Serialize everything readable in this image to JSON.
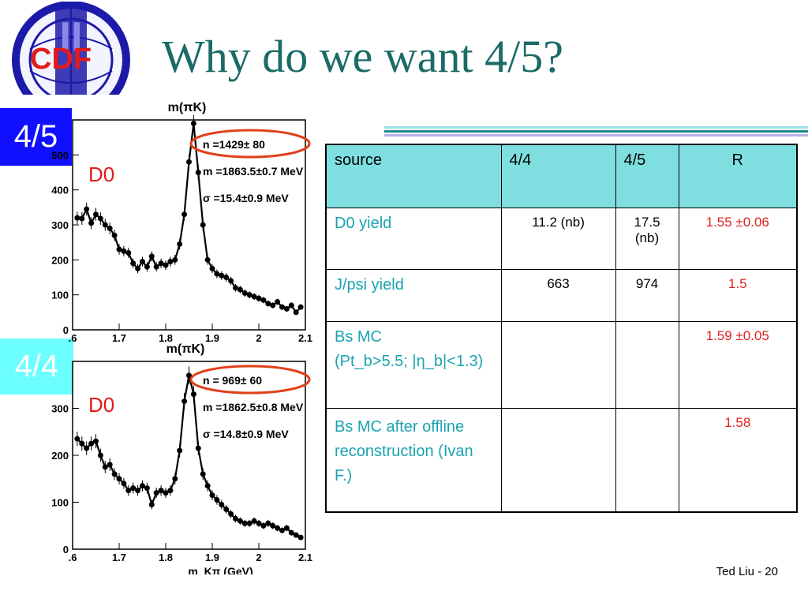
{
  "title": "Why do we want 4/5?",
  "logo": {
    "roman": "II",
    "text": "CDF"
  },
  "badges": {
    "top": "4/5",
    "bottom": "4/4"
  },
  "footer": "Ted Liu - 20",
  "colors": {
    "title": "#1b6b66",
    "badge_top": "#1010ff",
    "badge_bottom": "#6bffff",
    "table_header": "#7fdfe0",
    "source_text": "#1aa3b0",
    "ratio_text": "#e02020",
    "ellipse": "#e0401a"
  },
  "table": {
    "headers": {
      "source": "source",
      "c44": "4/4",
      "c45": "4/5",
      "r": "R"
    },
    "rows": [
      {
        "source": [
          "D0 yield"
        ],
        "c44": "11.2  (nb)",
        "c45": "17.5 (nb)",
        "r": "1.55 ±0.06"
      },
      {
        "source": [
          "J/psi yield"
        ],
        "c44": "663",
        "c45": "974",
        "r": "1.5"
      },
      {
        "source": [
          "Bs MC",
          "(Pt_b>5.5; |η_b|<1.3)"
        ],
        "c44": "",
        "c45": "",
        "r": "1.59 ±0.05"
      },
      {
        "source": [
          "Bs  MC after offline reconstruction (Ivan F.)"
        ],
        "c44": "",
        "c45": "",
        "r": "1.58"
      }
    ]
  },
  "chart_data": [
    {
      "type": "scatter",
      "title": "m(πK)",
      "xlabel": "",
      "ylabel": "",
      "label": "D0",
      "xlim": [
        1.6,
        2.1
      ],
      "ylim": [
        0,
        600
      ],
      "xticks": [
        ".6",
        "1.7",
        "1.8",
        "1.9",
        "2",
        "2.1"
      ],
      "yticks": [
        "0",
        "100",
        "200",
        "300",
        "400",
        "500"
      ],
      "annotations": [
        "n =1429± 80",
        "m =1863.5±0.7 MeV",
        "σ =15.4±0.9 MeV"
      ],
      "series": [
        {
          "x": [
            1.61,
            1.62,
            1.63,
            1.64,
            1.65,
            1.66,
            1.67,
            1.68,
            1.69,
            1.7,
            1.71,
            1.72,
            1.73,
            1.74,
            1.75,
            1.76,
            1.77,
            1.78,
            1.79,
            1.8,
            1.81,
            1.82,
            1.83,
            1.84,
            1.85,
            1.86,
            1.87,
            1.88,
            1.89,
            1.9,
            1.91,
            1.92,
            1.93,
            1.94,
            1.95,
            1.96,
            1.97,
            1.98,
            1.99,
            2.0,
            2.01,
            2.02,
            2.03,
            2.04,
            2.05,
            2.06,
            2.07,
            2.08,
            2.09
          ],
          "y": [
            320,
            318,
            345,
            305,
            330,
            318,
            300,
            290,
            270,
            230,
            225,
            220,
            190,
            175,
            195,
            180,
            210,
            180,
            190,
            185,
            195,
            200,
            245,
            330,
            480,
            590,
            450,
            300,
            200,
            175,
            160,
            155,
            150,
            140,
            120,
            115,
            105,
            100,
            95,
            90,
            85,
            75,
            70,
            80,
            65,
            60,
            70,
            50,
            65
          ]
        }
      ]
    },
    {
      "type": "scatter",
      "title": "m(πK)",
      "xlabel": "m_Kπ (GeV)",
      "ylabel": "",
      "label": "D0",
      "xlim": [
        1.6,
        2.1
      ],
      "ylim": [
        0,
        400
      ],
      "xticks": [
        ".6",
        "1.7",
        "1.8",
        "1.9",
        "2",
        "2.1"
      ],
      "yticks": [
        "0",
        "100",
        "200",
        "300"
      ],
      "annotations": [
        "n = 969± 60",
        "m =1862.5±0.8 MeV",
        "σ =14.8±0.9 MeV"
      ],
      "series": [
        {
          "x": [
            1.61,
            1.62,
            1.63,
            1.64,
            1.65,
            1.66,
            1.67,
            1.68,
            1.69,
            1.7,
            1.71,
            1.72,
            1.73,
            1.74,
            1.75,
            1.76,
            1.77,
            1.78,
            1.79,
            1.8,
            1.81,
            1.82,
            1.83,
            1.84,
            1.85,
            1.86,
            1.87,
            1.88,
            1.89,
            1.9,
            1.91,
            1.92,
            1.93,
            1.94,
            1.95,
            1.96,
            1.97,
            1.98,
            1.99,
            2.0,
            2.01,
            2.02,
            2.03,
            2.04,
            2.05,
            2.06,
            2.07,
            2.08,
            2.09
          ],
          "y": [
            235,
            225,
            215,
            225,
            230,
            200,
            175,
            180,
            160,
            150,
            140,
            125,
            130,
            125,
            135,
            130,
            95,
            120,
            125,
            120,
            125,
            150,
            210,
            315,
            370,
            330,
            215,
            160,
            135,
            115,
            105,
            95,
            85,
            75,
            65,
            60,
            55,
            55,
            60,
            55,
            50,
            55,
            50,
            45,
            40,
            45,
            35,
            30,
            25
          ]
        }
      ]
    }
  ]
}
